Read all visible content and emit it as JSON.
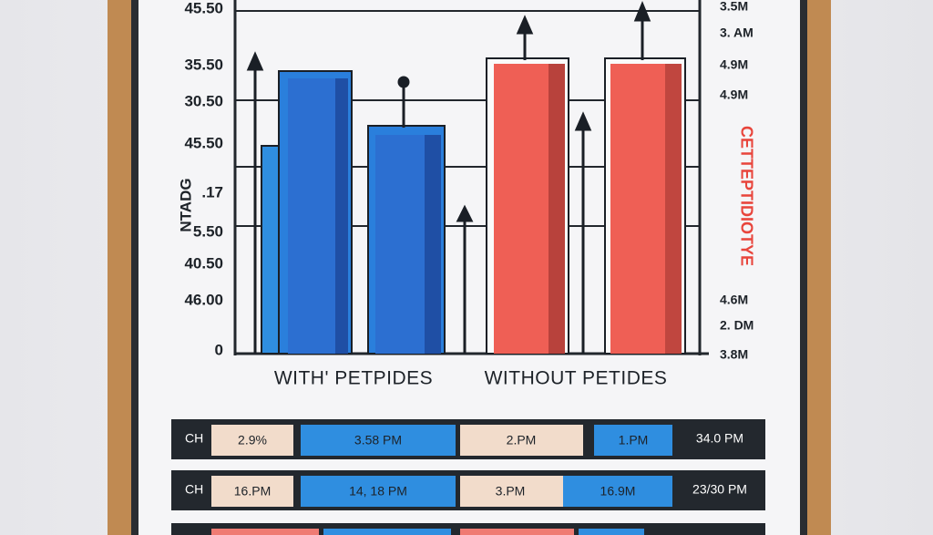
{
  "poster": {
    "left_axis_labels": [
      "45.50",
      "35.50",
      "30.50",
      "45.50",
      ".17",
      "5.50",
      "40.50",
      "46.00",
      "0"
    ],
    "left_axis_title": "NTADG",
    "right_axis_labels": [
      "3.5M",
      "3. AM",
      "4.9M",
      "4.9M",
      "4.6M",
      "2. DM",
      "3.8M"
    ],
    "right_axis_title": "CETTEPTIDIOTYE",
    "categories": [
      "WITH' PETPIDES",
      "WITHOUT PETIDES"
    ],
    "table": {
      "rows": [
        [
          "CH",
          "2.9%",
          "3.58 PM",
          "2.PM",
          "1.PM",
          "34.0 PM"
        ],
        [
          "CH",
          "16.PM",
          "14, 18 PM",
          "3.PM",
          "16.9M",
          "23/30 PM"
        ]
      ]
    }
  }
}
